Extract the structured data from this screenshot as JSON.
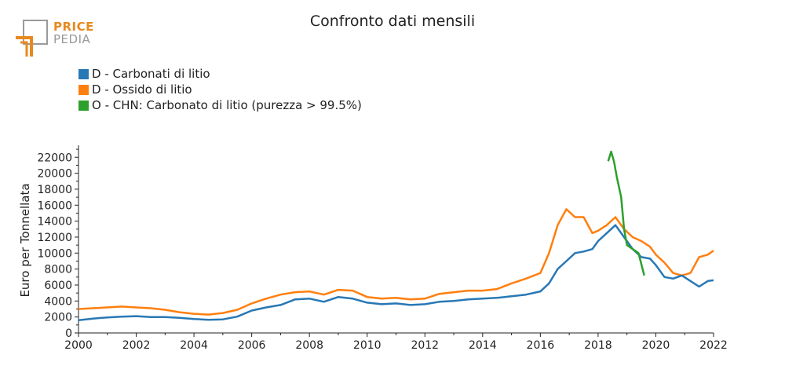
{
  "header": {
    "logo_top": "PRICE",
    "logo_bottom": "PEDIA",
    "brand_color": "#e8891d",
    "brand_gray": "#9a9a9a"
  },
  "chart_data": {
    "type": "line",
    "title": "Confronto dati mensili",
    "xlabel": "",
    "ylabel": "Euro per Tonnellata",
    "xlim": [
      2000,
      2022
    ],
    "ylim": [
      0,
      23500
    ],
    "xticks": [
      "2000",
      "2002",
      "2004",
      "2006",
      "2008",
      "2010",
      "2012",
      "2014",
      "2016",
      "2018",
      "2020",
      "2022"
    ],
    "yticks": [
      "0",
      "2000",
      "4000",
      "6000",
      "8000",
      "10000",
      "12000",
      "14000",
      "16000",
      "18000",
      "20000",
      "22000"
    ],
    "grid": false,
    "legend_position": "top-left",
    "series": [
      {
        "name": "D - Carbonati di litio",
        "color": "#2878b5",
        "x": [
          2000.0,
          2000.5,
          2001.0,
          2001.5,
          2002.0,
          2002.5,
          2003.0,
          2003.5,
          2004.0,
          2004.5,
          2005.0,
          2005.5,
          2006.0,
          2006.5,
          2007.0,
          2007.5,
          2008.0,
          2008.5,
          2009.0,
          2009.5,
          2010.0,
          2010.5,
          2011.0,
          2011.5,
          2012.0,
          2012.5,
          2013.0,
          2013.5,
          2014.0,
          2014.5,
          2015.0,
          2015.5,
          2016.0,
          2016.3,
          2016.6,
          2016.9,
          2017.2,
          2017.5,
          2017.8,
          2018.0,
          2018.3,
          2018.6,
          2018.9,
          2019.2,
          2019.5,
          2019.8,
          2020.0,
          2020.3,
          2020.6,
          2020.9,
          2021.2,
          2021.5,
          2021.8,
          2022.0
        ],
        "values": [
          1600,
          1800,
          1950,
          2050,
          2100,
          2000,
          2000,
          1900,
          1750,
          1650,
          1700,
          2050,
          2800,
          3200,
          3500,
          4200,
          4300,
          3900,
          4500,
          4300,
          3800,
          3600,
          3700,
          3500,
          3600,
          3900,
          4000,
          4200,
          4300,
          4400,
          4600,
          4800,
          5200,
          6200,
          8000,
          9000,
          10000,
          10200,
          10500,
          11500,
          12500,
          13500,
          12000,
          10500,
          9500,
          9300,
          8500,
          7000,
          6800,
          7200,
          6500,
          5800,
          6500,
          6600
        ]
      },
      {
        "name": "D - Ossido di litio",
        "color": "#ff7f0e",
        "x": [
          2000.0,
          2000.5,
          2001.0,
          2001.5,
          2002.0,
          2002.5,
          2003.0,
          2003.5,
          2004.0,
          2004.5,
          2005.0,
          2005.5,
          2006.0,
          2006.5,
          2007.0,
          2007.5,
          2008.0,
          2008.5,
          2009.0,
          2009.5,
          2010.0,
          2010.5,
          2011.0,
          2011.5,
          2012.0,
          2012.5,
          2013.0,
          2013.5,
          2014.0,
          2014.5,
          2015.0,
          2015.5,
          2016.0,
          2016.3,
          2016.6,
          2016.9,
          2017.2,
          2017.5,
          2017.8,
          2018.0,
          2018.3,
          2018.6,
          2018.9,
          2019.2,
          2019.5,
          2019.8,
          2020.0,
          2020.3,
          2020.6,
          2020.9,
          2021.2,
          2021.5,
          2021.8,
          2022.0
        ],
        "values": [
          3000,
          3100,
          3200,
          3300,
          3200,
          3100,
          2900,
          2600,
          2400,
          2300,
          2500,
          2900,
          3700,
          4300,
          4800,
          5100,
          5200,
          4800,
          5400,
          5300,
          4500,
          4300,
          4400,
          4200,
          4300,
          4900,
          5100,
          5300,
          5300,
          5500,
          6200,
          6800,
          7500,
          10000,
          13500,
          15500,
          14500,
          14500,
          12500,
          12800,
          13500,
          14500,
          13000,
          12000,
          11500,
          10800,
          9800,
          8800,
          7500,
          7200,
          7500,
          9500,
          9800,
          10300
        ]
      },
      {
        "name": "O - CHN: Carbonato di litio (purezza > 99.5%)",
        "color": "#2ca02c",
        "x": [
          2018.35,
          2018.45,
          2018.55,
          2018.65,
          2018.8,
          2018.9,
          2019.0,
          2019.2,
          2019.4,
          2019.6
        ],
        "values": [
          21500,
          22700,
          21500,
          19500,
          17000,
          13000,
          11000,
          10500,
          10000,
          7200
        ]
      }
    ]
  }
}
